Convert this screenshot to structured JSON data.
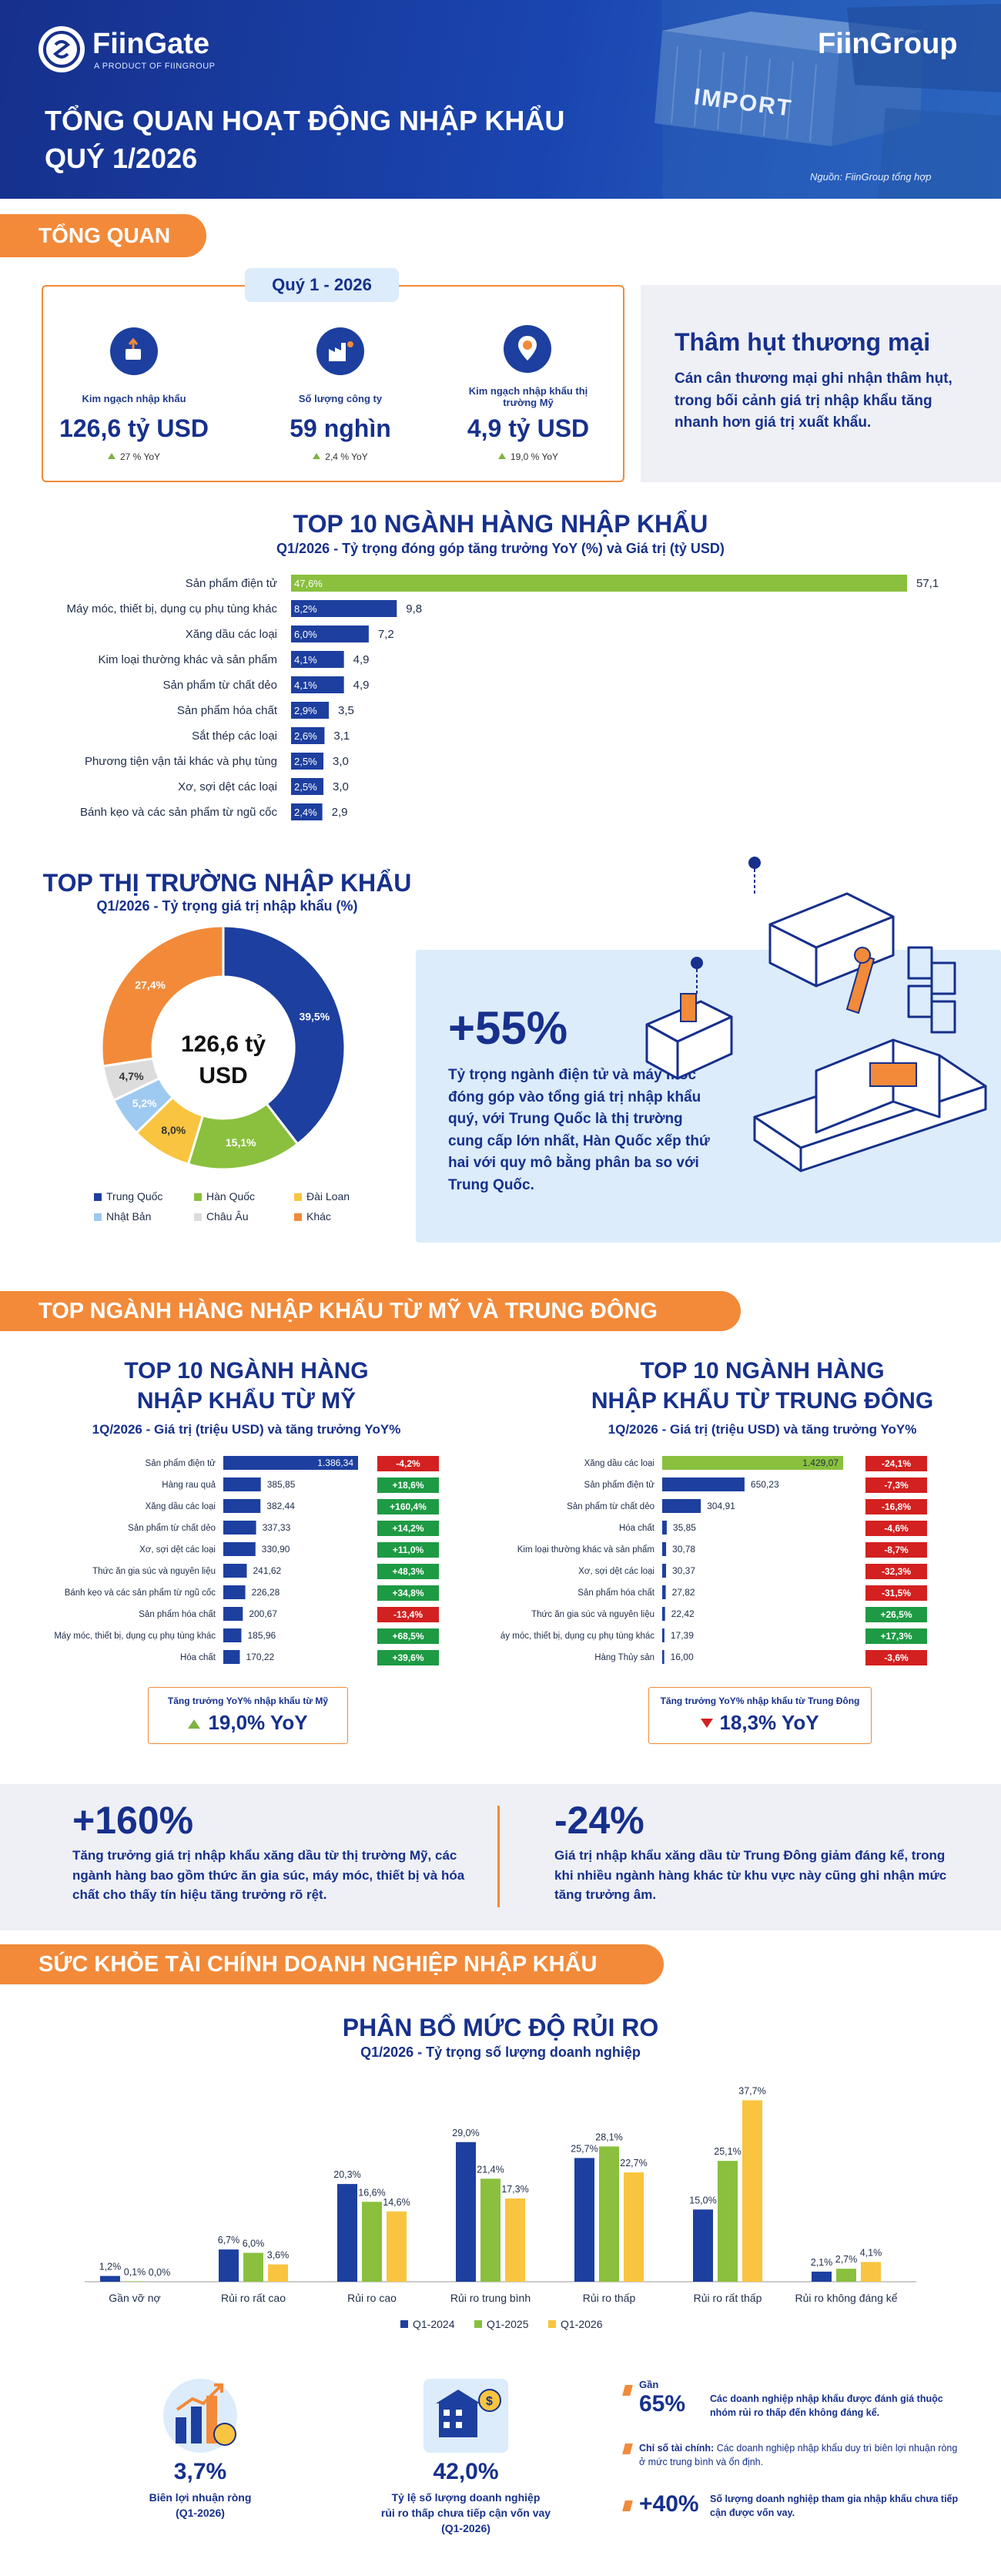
{
  "header": {
    "logo": "FiinGate",
    "logo_tag": "A PRODUCT OF FIINGROUP",
    "brand_right": "FiinGroup",
    "title_line1": "TỔNG QUAN HOẠT ĐỘNG NHẬP KHẨU",
    "title_line2": "QUÝ 1/2026",
    "container_text": "IMPORT",
    "source": "Nguồn: FiinGroup tổng hợp"
  },
  "overview": {
    "section_label": "TỔNG QUAN",
    "quarter_tab": "Quý 1 - 2026",
    "kpis": [
      {
        "label": "Kim ngạch nhập khẩu",
        "value": "126,6 tỷ USD",
        "yoy": "27 % YoY",
        "icon": "import-money-icon"
      },
      {
        "label": "Số lượng công ty",
        "value": "59 nghìn",
        "yoy": "2,4 % YoY",
        "icon": "factory-icon"
      },
      {
        "label": "Kim ngạch nhập khẩu thị trường Mỹ",
        "value": "4,9 tỷ USD",
        "yoy": "19,0 % YoY",
        "icon": "us-market-icon"
      }
    ],
    "deficit_title": "Thâm hụt thương mại",
    "deficit_text": "Cán cân thương mại ghi nhận thâm hụt, trong bối cảnh giá trị nhập khẩu tăng nhanh hơn giá trị xuất khẩu."
  },
  "top10": {
    "title": "TOP 10 NGÀNH HÀNG NHẬP KHẨU",
    "subtitle": "Q1/2026 - Tỷ trọng đóng góp tăng trưởng YoY (%) và Giá trị (tỷ USD)"
  },
  "markets": {
    "title": "TOP THỊ TRƯỜNG NHẬP KHẨU",
    "subtitle": "Q1/2026 - Tỷ trọng giá trị nhập khẩu (%)",
    "center_value": "126,6 tỷ USD",
    "highlight_value": "+55%",
    "highlight_text": "Tỷ trọng ngành điện tử và máy móc đóng góp vào tổng giá trị nhập khẩu quý, với Trung Quốc là thị trường cung cấp lớn nhất, Hàn Quốc xếp thứ hai với quy mô bằng phân ba so với Trung Quốc."
  },
  "usme": {
    "section_label": "TOP NGÀNH HÀNG NHẬP KHẨU TỪ MỸ VÀ TRUNG ĐÔNG",
    "us_title1": "TOP 10 NGÀNH HÀNG",
    "us_title2": "NHẬP KHẨU TỪ MỸ",
    "us_sub": "1Q/2026 - Giá trị (triệu USD) và tăng trưởng YoY%",
    "me_title1": "TOP 10 NGÀNH HÀNG",
    "me_title2": "NHẬP KHẨU TỪ TRUNG ĐÔNG",
    "me_sub": "1Q/2026 - Giá trị (triệu USD) và tăng trưởng YoY%",
    "us_box_label": "Tăng trưởng YoY% nhập khẩu từ Mỹ",
    "us_box_value": "19,0% YoY",
    "me_box_label": "Tăng trưởng YoY% nhập khẩu từ Trung Đông",
    "me_box_value": "18,3% YoY",
    "left_stat": "+160%",
    "left_text": "Tăng trưởng giá trị nhập khẩu xăng dầu từ thị trường Mỹ, các ngành hàng bao gồm thức ăn gia súc, máy móc, thiết bị và hóa chất cho thấy tín hiệu tăng trưởng rõ rệt.",
    "right_stat": "-24%",
    "right_text": "Giá trị nhập khẩu xăng dầu từ Trung Đông giảm đáng kể, trong khi nhiều ngành hàng khác từ khu vực này cũng ghi nhận mức tăng trưởng âm."
  },
  "health": {
    "section_label": "SỨC KHỎE TÀI CHÍNH DOANH NGHIỆP NHẬP KHẨU",
    "title": "PHÂN BỔ MỨC ĐỘ RỦI RO",
    "subtitle": "Q1/2026 - Tỷ trọng số lượng doanh nghiệp",
    "stat1_value": "3,7%",
    "stat1_label1": "Biên lợi nhuận ròng",
    "stat1_label2": "(Q1-2026)",
    "stat2_value": "42,0%",
    "stat2_label1": "Tỷ lệ số lượng doanh nghiệp",
    "stat2_label2": "rủi ro thấp chưa tiếp cận vốn vay",
    "stat2_label3": "(Q1-2026)",
    "notes": [
      {
        "prefix": "Gần",
        "value": "65%",
        "text": "Các doanh nghiệp nhập khẩu được đánh giá thuộc nhóm rủi ro thấp đến không đáng kể."
      },
      {
        "prefix": "",
        "value": "",
        "bold": "Chỉ số tài chính:",
        "text": " Các doanh nghiệp nhập khẩu duy trì biên lợi nhuận ròng ở mức trung bình và ổn định."
      },
      {
        "prefix": "",
        "value": "+40%",
        "text": "Số lượng doanh nghiệp tham gia nhập khẩu chưa tiếp cận được vốn vay."
      }
    ]
  },
  "colors": {
    "navy": "#16308c",
    "blue": "#1d3f9f",
    "orange": "#f28a3a",
    "green": "#8ac03e",
    "yellow": "#f9c440",
    "red": "#d32020",
    "lightblue_bg": "#dcecfb"
  },
  "chart_data": [
    {
      "type": "bar",
      "orientation": "horizontal",
      "categories": [
        "Sản phẩm điện tử",
        "Máy móc, thiết bị, dụng cụ phụ tùng khác",
        "Xăng dầu các loại",
        "Kim loại thường khác và sản phẩm",
        "Sản phẩm từ chất dẻo",
        "Sản phẩm hóa chất",
        "Sắt thép các loại",
        "Phương tiện vận tải khác và phụ tùng",
        "Xơ, sợi dệt các loại",
        "Bánh kẹo và các sản phẩm từ ngũ cốc"
      ],
      "values": [
        57.1,
        9.8,
        7.2,
        4.9,
        4.9,
        3.5,
        3.1,
        3.0,
        3.0,
        2.9
      ],
      "value_labels": [
        "57,1",
        "9,8",
        "7,2",
        "4,9",
        "4,9",
        "3,5",
        "3,1",
        "3,0",
        "3,0",
        "2,9"
      ],
      "contribution_labels": [
        "47,6%",
        "8,2%",
        "6,0%",
        "4,1%",
        "4,1%",
        "2,9%",
        "2,6%",
        "2,5%",
        "2,5%",
        "2,4%"
      ],
      "highlight_color": "#8ac03e",
      "bar_color": "#1d3f9f"
    },
    {
      "type": "pie",
      "donut": true,
      "labels": [
        "Trung Quốc",
        "Hàn Quốc",
        "Đài Loan",
        "Nhật Bản",
        "Châu Âu",
        "Khác"
      ],
      "values": [
        39.5,
        15.1,
        8.0,
        5.2,
        4.7,
        27.4
      ],
      "value_labels": [
        "39,5%",
        "15,1%",
        "8,0%",
        "5,2%",
        "4,7%",
        "27,4%"
      ],
      "colors": [
        "#1d3f9f",
        "#8ac03e",
        "#f9c440",
        "#9ec9f0",
        "#dcdcdc",
        "#f28a3a"
      ],
      "legend": "bottom"
    },
    {
      "type": "bar",
      "orientation": "horizontal",
      "title": "TOP 10 NGÀNH HÀNG NHẬP KHẨU TỪ MỸ",
      "categories": [
        "Sản phẩm điện tử",
        "Hàng rau quả",
        "Xăng dầu các loại",
        "Sản phẩm từ chất dẻo",
        "Xơ, sợi dệt các loại",
        "Thức ăn gia súc và nguyên liệu",
        "Bánh kẹo và các sản phẩm từ ngũ cốc",
        "Sản phẩm hóa chất",
        "Máy móc, thiết bị, dụng cụ phụ tùng khác",
        "Hóa chất"
      ],
      "values": [
        1386.34,
        385.85,
        382.44,
        337.33,
        330.9,
        241.62,
        226.28,
        200.67,
        185.96,
        170.22
      ],
      "value_labels": [
        "1.386,34",
        "385,85",
        "382,44",
        "337,33",
        "330,90",
        "241,62",
        "226,28",
        "200,67",
        "185,96",
        "170,22"
      ],
      "yoy_labels": [
        "-4,2%",
        "+18,6%",
        "+160,4%",
        "+14,2%",
        "+11,0%",
        "+48,3%",
        "+34,8%",
        "-13,4%",
        "+68,5%",
        "+39,6%"
      ],
      "yoy": [
        -4.2,
        18.6,
        160.4,
        14.2,
        11.0,
        48.3,
        34.8,
        -13.4,
        68.5,
        39.6
      ]
    },
    {
      "type": "bar",
      "orientation": "horizontal",
      "title": "TOP 10 NGÀNH HÀNG NHẬP KHẨU TỪ TRUNG ĐÔNG",
      "categories": [
        "Xăng dầu các loại",
        "Sản phẩm điện tử",
        "Sản phẩm từ chất dẻo",
        "Hóa chất",
        "Kim loại thường khác và sản phẩm",
        "Xơ, sợi dệt các loại",
        "Sản phẩm hóa chất",
        "Thức ăn gia súc và nguyên liệu",
        "Máy móc, thiết bị, dụng cụ phụ tùng khác",
        "Hàng Thủy sản"
      ],
      "values": [
        1429.07,
        650.23,
        304.91,
        35.85,
        30.78,
        30.37,
        27.82,
        22.42,
        17.39,
        16.0
      ],
      "value_labels": [
        "1.429,07",
        "650,23",
        "304,91",
        "35,85",
        "30,78",
        "30,37",
        "27,82",
        "22,42",
        "17,39",
        "16,00"
      ],
      "yoy_labels": [
        "-24,1%",
        "-7,3%",
        "-16,8%",
        "-4,6%",
        "-8,7%",
        "-32,3%",
        "-31,5%",
        "+26,5%",
        "+17,3%",
        "-3,6%"
      ],
      "yoy": [
        -24.1,
        -7.3,
        -16.8,
        -4.6,
        -8.7,
        -32.3,
        -31.5,
        26.5,
        17.3,
        -3.6
      ]
    },
    {
      "type": "bar",
      "title": "PHÂN BỔ MỨC ĐỘ RỦI RO",
      "categories": [
        "Gần vỡ nợ",
        "Rủi ro rất cao",
        "Rủi ro cao",
        "Rủi ro trung bình",
        "Rủi ro thấp",
        "Rủi ro rất thấp",
        "Rủi ro không đáng kể"
      ],
      "series": [
        {
          "name": "Q1-2024",
          "values": [
            1.2,
            6.7,
            20.3,
            29.0,
            25.7,
            15.0,
            2.1
          ],
          "labels": [
            "1,2%",
            "6,7%",
            "20,3%",
            "29,0%",
            "25,7%",
            "15,0%",
            "2,1%"
          ],
          "color": "#1d3f9f"
        },
        {
          "name": "Q1-2025",
          "values": [
            0.1,
            6.0,
            16.6,
            21.4,
            28.1,
            25.1,
            2.7
          ],
          "labels": [
            "0,1%",
            "6,0%",
            "16,6%",
            "21,4%",
            "28,1%",
            "25,1%",
            "2,7%"
          ],
          "color": "#8ac03e"
        },
        {
          "name": "Q1-2026",
          "values": [
            0.0,
            3.6,
            14.6,
            17.3,
            22.7,
            37.7,
            4.1
          ],
          "labels": [
            "0,0%",
            "3,6%",
            "14,6%",
            "17,3%",
            "22,7%",
            "37,7%",
            "4,1%"
          ],
          "color": "#f9c440"
        }
      ],
      "legend": "bottom",
      "grid": false
    }
  ]
}
